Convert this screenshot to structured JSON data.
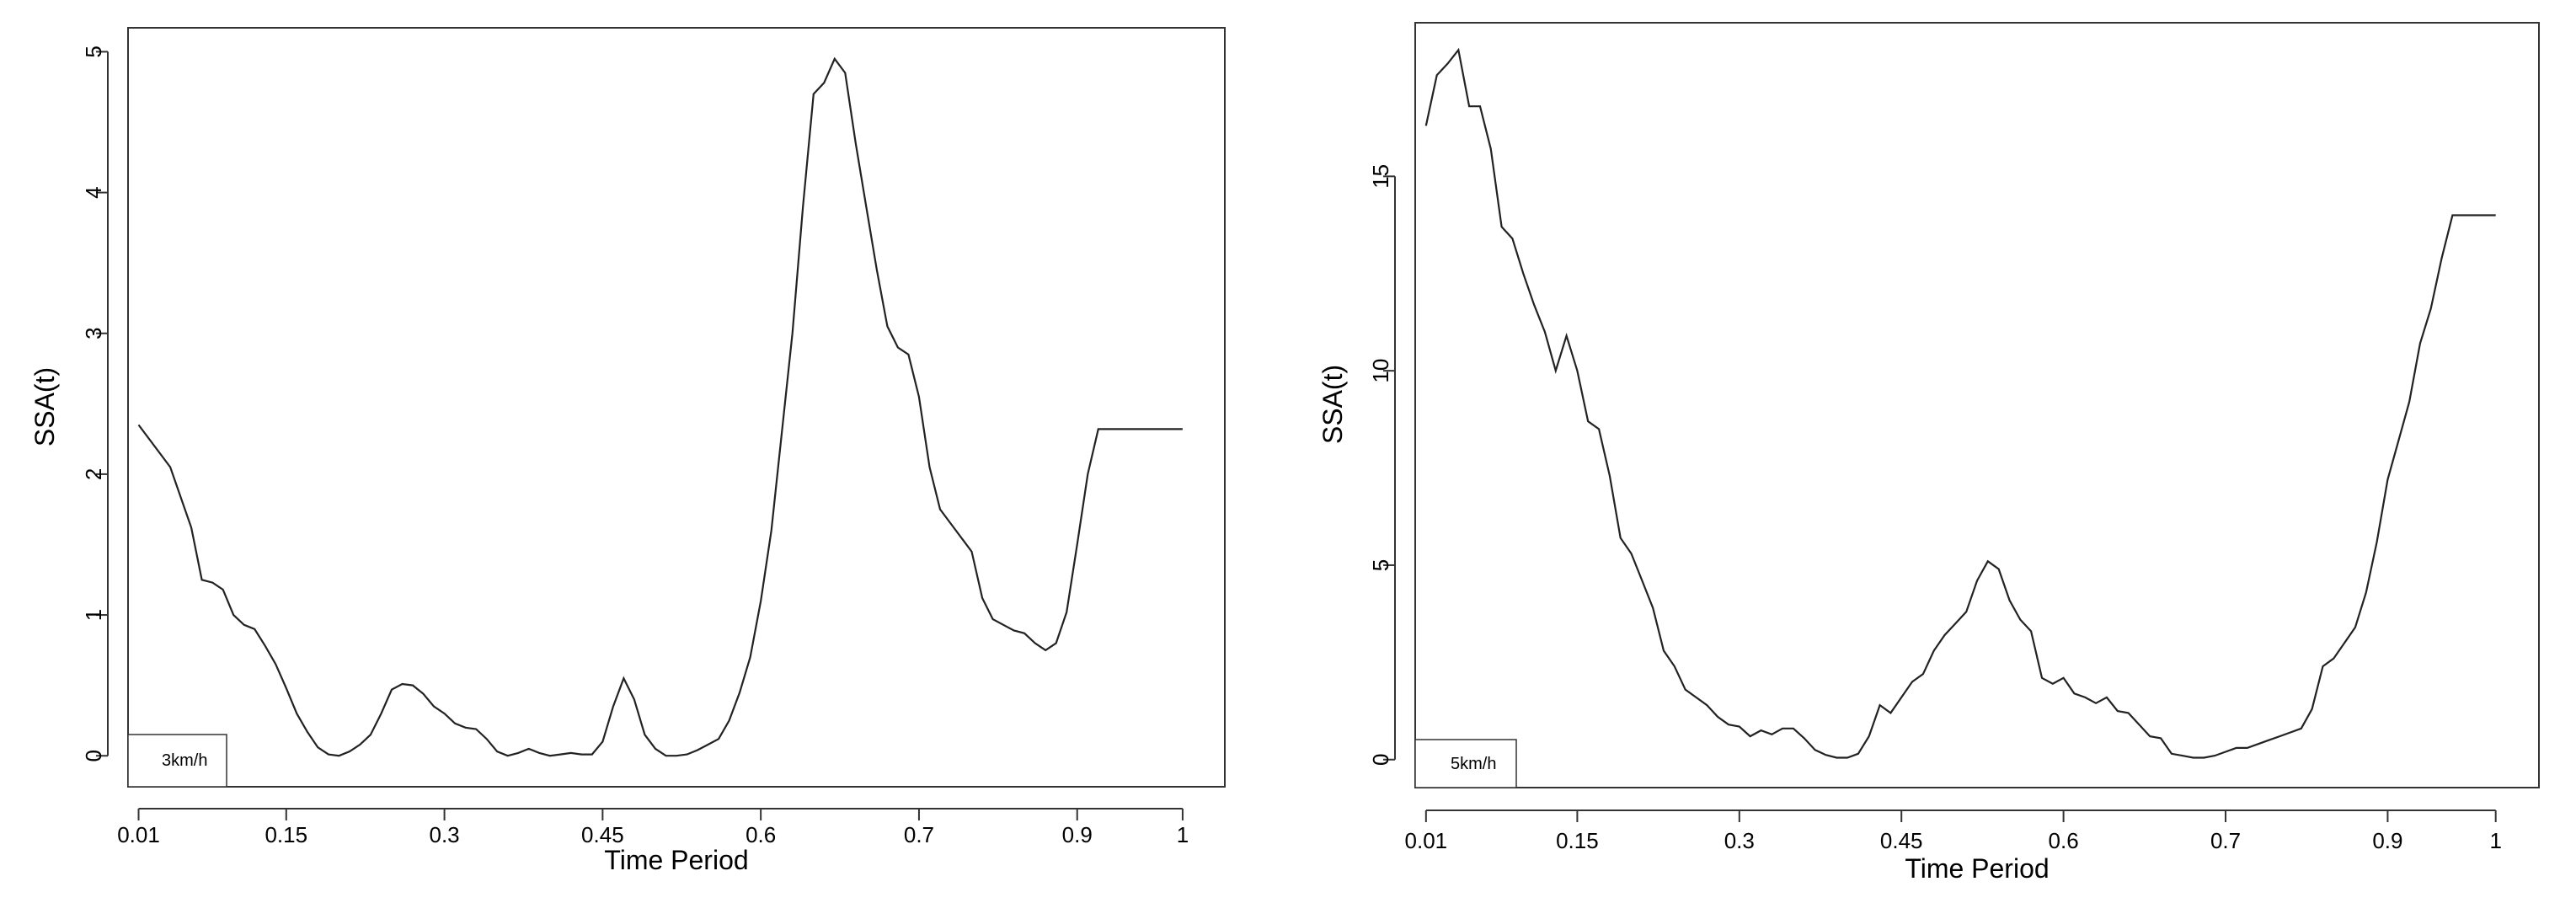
{
  "chart_data": [
    {
      "type": "line",
      "title": "",
      "xlabel": "Time Period",
      "ylabel": "SSA(t)",
      "xtick_labels": [
        "0.01",
        "0.15",
        "0.3",
        "0.45",
        "0.6",
        "0.7",
        "0.9",
        "1"
      ],
      "yticks": [
        0,
        1,
        2,
        3,
        4,
        5
      ],
      "xlim": [
        0.0,
        1.04
      ],
      "ylim": [
        -0.22,
        5.17
      ],
      "grid": false,
      "legend": {
        "text": "3km/h",
        "position": "bottom-left"
      },
      "series": [
        {
          "x": [
            0.01,
            0.04,
            0.06,
            0.07,
            0.08,
            0.09,
            0.1,
            0.11,
            0.12,
            0.13,
            0.14,
            0.15,
            0.16,
            0.17,
            0.18,
            0.19,
            0.2,
            0.21,
            0.22,
            0.23,
            0.24,
            0.25,
            0.26,
            0.27,
            0.28,
            0.29,
            0.3,
            0.31,
            0.32,
            0.33,
            0.34,
            0.35,
            0.36,
            0.37,
            0.38,
            0.39,
            0.4,
            0.41,
            0.42,
            0.43,
            0.44,
            0.45,
            0.46,
            0.47,
            0.48,
            0.49,
            0.5,
            0.51,
            0.52,
            0.53,
            0.54,
            0.55,
            0.56,
            0.57,
            0.58,
            0.59,
            0.6,
            0.61,
            0.62,
            0.63,
            0.64,
            0.65,
            0.66,
            0.67,
            0.68,
            0.69,
            0.7,
            0.71,
            0.72,
            0.73,
            0.74,
            0.75,
            0.76,
            0.77,
            0.78,
            0.79,
            0.8,
            0.81,
            0.82,
            0.83,
            0.84,
            0.85,
            0.86,
            0.87,
            0.88,
            0.89,
            0.9,
            0.91,
            0.92,
            0.93,
            0.94,
            0.95,
            0.96,
            0.97,
            0.98,
            0.99,
            1.0
          ],
          "y": [
            2.35,
            2.05,
            1.62,
            1.25,
            1.23,
            1.18,
            1.0,
            0.93,
            0.9,
            0.78,
            0.65,
            0.48,
            0.3,
            0.17,
            0.06,
            0.01,
            0.0,
            0.03,
            0.08,
            0.15,
            0.3,
            0.47,
            0.51,
            0.5,
            0.44,
            0.35,
            0.3,
            0.23,
            0.2,
            0.19,
            0.12,
            0.03,
            0.0,
            0.02,
            0.05,
            0.02,
            0.0,
            0.01,
            0.02,
            0.01,
            0.01,
            0.1,
            0.35,
            0.55,
            0.4,
            0.15,
            0.05,
            0.0,
            0.0,
            0.01,
            0.04,
            0.08,
            0.12,
            0.25,
            0.45,
            0.7,
            1.1,
            1.6,
            2.3,
            3.0,
            3.9,
            4.7,
            4.78,
            4.95,
            4.85,
            4.35,
            3.9,
            3.45,
            3.05,
            2.9,
            2.85,
            2.55,
            2.05,
            1.75,
            1.65,
            1.55,
            1.45,
            1.12,
            0.97,
            0.93,
            0.89,
            0.87,
            0.8,
            0.75,
            0.8,
            1.02,
            1.5,
            2.0,
            2.32,
            2.32,
            2.32,
            2.32,
            2.32,
            2.32,
            2.32,
            2.32,
            2.32
          ]
        }
      ]
    },
    {
      "type": "line",
      "title": "",
      "xlabel": "Time Period",
      "ylabel": "SSA(t)",
      "xtick_labels": [
        "0.01",
        "0.15",
        "0.3",
        "0.45",
        "0.6",
        "0.7",
        "0.9",
        "1"
      ],
      "yticks": [
        0,
        5,
        10,
        15
      ],
      "xlim": [
        0.0,
        1.04
      ],
      "ylim": [
        -0.72,
        18.95
      ],
      "grid": false,
      "legend": {
        "text": "5km/h",
        "position": "bottom-left"
      },
      "series": [
        {
          "x": [
            0.01,
            0.02,
            0.03,
            0.04,
            0.05,
            0.06,
            0.07,
            0.08,
            0.09,
            0.1,
            0.11,
            0.12,
            0.13,
            0.14,
            0.15,
            0.16,
            0.17,
            0.18,
            0.19,
            0.2,
            0.21,
            0.22,
            0.23,
            0.24,
            0.25,
            0.26,
            0.27,
            0.28,
            0.29,
            0.3,
            0.31,
            0.32,
            0.33,
            0.34,
            0.35,
            0.36,
            0.37,
            0.38,
            0.39,
            0.4,
            0.41,
            0.42,
            0.43,
            0.44,
            0.45,
            0.46,
            0.47,
            0.48,
            0.49,
            0.5,
            0.51,
            0.52,
            0.53,
            0.54,
            0.55,
            0.56,
            0.57,
            0.58,
            0.59,
            0.6,
            0.61,
            0.62,
            0.63,
            0.64,
            0.65,
            0.66,
            0.67,
            0.68,
            0.69,
            0.7,
            0.71,
            0.72,
            0.73,
            0.74,
            0.75,
            0.76,
            0.77,
            0.78,
            0.79,
            0.8,
            0.81,
            0.82,
            0.83,
            0.84,
            0.85,
            0.86,
            0.87,
            0.88,
            0.89,
            0.9,
            0.91,
            0.92,
            0.93,
            0.94,
            0.95,
            0.96,
            0.97,
            0.98,
            0.99,
            1.0
          ],
          "y": [
            16.3,
            17.6,
            17.9,
            18.25,
            16.8,
            16.8,
            15.7,
            13.7,
            13.4,
            12.5,
            11.7,
            11.0,
            10.0,
            10.9,
            10.0,
            8.7,
            8.5,
            7.3,
            5.7,
            5.3,
            4.6,
            3.9,
            2.8,
            2.4,
            1.8,
            1.6,
            1.4,
            1.1,
            0.9,
            0.85,
            0.6,
            0.75,
            0.65,
            0.8,
            0.8,
            0.55,
            0.25,
            0.12,
            0.05,
            0.05,
            0.15,
            0.6,
            1.4,
            1.2,
            1.6,
            2.0,
            2.2,
            2.8,
            3.2,
            3.5,
            3.8,
            4.6,
            5.1,
            4.9,
            4.1,
            3.6,
            3.3,
            2.1,
            1.95,
            2.1,
            1.7,
            1.6,
            1.45,
            1.6,
            1.25,
            1.2,
            0.9,
            0.6,
            0.55,
            0.15,
            0.1,
            0.05,
            0.05,
            0.1,
            0.2,
            0.3,
            0.3,
            0.4,
            0.5,
            0.6,
            0.7,
            0.8,
            1.3,
            2.4,
            2.6,
            3.0,
            3.4,
            4.3,
            5.6,
            7.2,
            8.2,
            9.2,
            10.7,
            11.6,
            12.9,
            14.0,
            14.0,
            14.0,
            14.0,
            14.0
          ]
        }
      ]
    }
  ]
}
